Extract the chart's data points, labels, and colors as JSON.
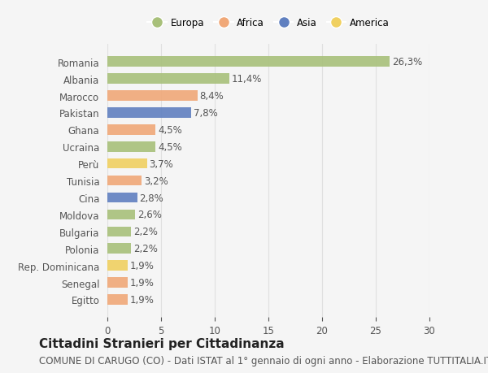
{
  "countries": [
    "Romania",
    "Albania",
    "Marocco",
    "Pakistan",
    "Ghana",
    "Ucraina",
    "Perù",
    "Tunisia",
    "Cina",
    "Moldova",
    "Bulgaria",
    "Polonia",
    "Rep. Dominicana",
    "Senegal",
    "Egitto"
  ],
  "values": [
    26.3,
    11.4,
    8.4,
    7.8,
    4.5,
    4.5,
    3.7,
    3.2,
    2.8,
    2.6,
    2.2,
    2.2,
    1.9,
    1.9,
    1.9
  ],
  "labels": [
    "26,3%",
    "11,4%",
    "8,4%",
    "7,8%",
    "4,5%",
    "4,5%",
    "3,7%",
    "3,2%",
    "2,8%",
    "2,6%",
    "2,2%",
    "2,2%",
    "1,9%",
    "1,9%",
    "1,9%"
  ],
  "regions": [
    "Europa",
    "Europa",
    "Africa",
    "Asia",
    "Africa",
    "Europa",
    "America",
    "Africa",
    "Asia",
    "Europa",
    "Europa",
    "Europa",
    "America",
    "Africa",
    "Africa"
  ],
  "colors": {
    "Europa": "#a8c07a",
    "Africa": "#f0a878",
    "Asia": "#6080c0",
    "America": "#f0d060"
  },
  "xlim": [
    0,
    30
  ],
  "xticks": [
    0,
    5,
    10,
    15,
    20,
    25,
    30
  ],
  "title": "Cittadini Stranieri per Cittadinanza",
  "subtitle": "COMUNE DI CARUGO (CO) - Dati ISTAT al 1° gennaio di ogni anno - Elaborazione TUTTITALIA.IT",
  "background_color": "#f5f5f5",
  "grid_color": "#e0e0e0",
  "title_fontsize": 11,
  "subtitle_fontsize": 8.5,
  "label_fontsize": 8.5,
  "tick_fontsize": 8.5,
  "legend_order": [
    "Europa",
    "Africa",
    "Asia",
    "America"
  ]
}
